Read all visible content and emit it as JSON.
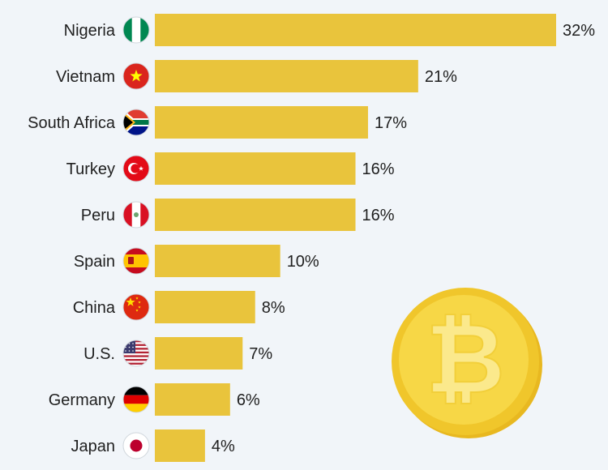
{
  "colors": {
    "background": "#f1f5f9",
    "bar": "#e9c43c",
    "label_text": "#1f1f1f",
    "coin_outer": "#f0c62b",
    "coin_inner": "#f7d746",
    "coin_symbol": "#fbe98c"
  },
  "chart_data": {
    "type": "bar",
    "orientation": "horizontal",
    "categories": [
      "Nigeria",
      "Vietnam",
      "South Africa",
      "Turkey",
      "Peru",
      "Spain",
      "China",
      "U.S.",
      "Germany",
      "Japan"
    ],
    "values": [
      32,
      21,
      17,
      16,
      16,
      10,
      8,
      7,
      6,
      4
    ],
    "data_labels": [
      "32%",
      "21%",
      "17%",
      "16%",
      "16%",
      "10%",
      "8%",
      "7%",
      "6%",
      "4%"
    ],
    "title": "",
    "xlabel": "",
    "ylabel": "",
    "xlim": [
      0,
      32
    ],
    "grid": false,
    "legend": "none"
  },
  "decoration": {
    "flag_icons": [
      "nigeria-flag-icon",
      "vietnam-flag-icon",
      "south-africa-flag-icon",
      "turkey-flag-icon",
      "peru-flag-icon",
      "spain-flag-icon",
      "china-flag-icon",
      "us-flag-icon",
      "germany-flag-icon",
      "japan-flag-icon"
    ],
    "coin_icon": "bitcoin-coin-icon"
  }
}
